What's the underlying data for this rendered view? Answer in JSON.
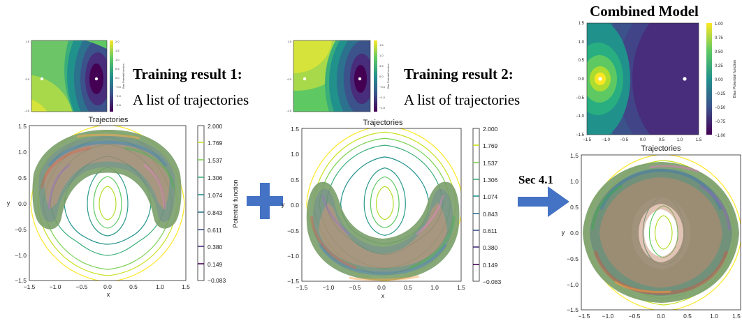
{
  "figure": {
    "panel1": {
      "heading": "Training result 1:",
      "subheading": "A list of trajectories",
      "bias_colorbar": {
        "label": "Bias Potential function",
        "ticks": [
          "2.0",
          "1.5",
          "1.0",
          "0.5",
          "0.0",
          "−0.5",
          "−1.0",
          "−1.5"
        ]
      },
      "traj_plot": {
        "title": "Trajectories",
        "xlabel": "x",
        "ylabel": "y",
        "xticks": [
          "−1.5",
          "−1.0",
          "−0.5",
          "0.0",
          "0.5",
          "1.0",
          "1.5"
        ],
        "yticks": [
          "1.5",
          "1.0",
          "0.5",
          "0.0",
          "−0.5",
          "−1.0",
          "−1.5"
        ],
        "colorbar_label": "Potential function",
        "colorbar_ticks": [
          "2.000",
          "1.769",
          "1.537",
          "1.306",
          "1.074",
          "0.843",
          "0.611",
          "0.380",
          "0.149",
          "−0.083"
        ]
      }
    },
    "operator_plus": "+",
    "panel2": {
      "heading": "Training result 2:",
      "subheading": "A list of trajectories",
      "bias_colorbar": {
        "label": "Bias Potential function",
        "ticks": [
          "1.5",
          "1.0",
          "0.5",
          "0.0",
          "−0.5",
          "−1.0",
          "−1.5"
        ]
      },
      "traj_plot": {
        "title": "Trajectories",
        "xlabel": "x",
        "ylabel": "y",
        "xticks": [
          "−1.5",
          "−1.0",
          "−0.5",
          "0.0",
          "0.5",
          "1.0",
          "1.5"
        ],
        "yticks": [
          "1.5",
          "1.0",
          "0.5",
          "0.0",
          "−0.5",
          "−1.0",
          "−1.5"
        ],
        "colorbar_ticks": [
          "2.000",
          "1.769",
          "1.537",
          "1.306",
          "1.074",
          "0.843",
          "0.611",
          "0.380",
          "0.149",
          "−0.083"
        ]
      }
    },
    "arrow_label": "Sec 4.1",
    "panel3": {
      "heading": "Combined Model",
      "bias_plot": {
        "xticks": [
          "−1.5",
          "−1.0",
          "−0.5",
          "0.0",
          "0.5",
          "1.0",
          "1.5"
        ],
        "yticks": [
          "1.5",
          "1.0",
          "0.5",
          "0.0",
          "−0.5",
          "−1.0",
          "−1.5"
        ],
        "colorbar_label": "Bias Potential function",
        "colorbar_ticks": [
          "1.00",
          "0.75",
          "0.50",
          "0.25",
          "0.00",
          "−0.25",
          "−0.50",
          "−0.75",
          "−1.00"
        ]
      },
      "traj_plot": {
        "title": "Trajectories",
        "ylabel": "y",
        "xticks": [
          "−1.5",
          "−1.0",
          "−0.5",
          "0.0",
          "0.5",
          "1.0",
          "1.5"
        ],
        "yticks": [
          "1.5",
          "1.0",
          "0.5",
          "0.0",
          "−0.5",
          "−1.0",
          "−1.5"
        ]
      }
    }
  },
  "colors": {
    "arrow_blue": "#4472c4",
    "viridis_dark": "#440154",
    "viridis_yellow": "#fde725"
  }
}
